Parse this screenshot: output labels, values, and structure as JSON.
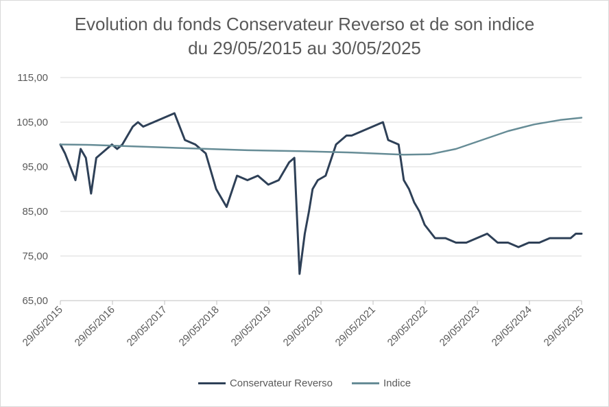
{
  "chart_data": {
    "type": "line",
    "title_line1": "Evolution du fonds Conservateur Reverso et de son indice",
    "title_line2": "du 29/05/2015 au 30/05/2025",
    "xlabel": "",
    "ylabel": "",
    "ylim": [
      65,
      115
    ],
    "y_ticks": [
      65,
      75,
      85,
      95,
      105,
      115
    ],
    "y_tick_labels": [
      "65,00",
      "75,00",
      "85,00",
      "95,00",
      "105,00",
      "115,00"
    ],
    "x_tick_labels": [
      "29/05/2015",
      "29/05/2016",
      "29/05/2017",
      "29/05/2018",
      "29/05/2019",
      "29/05/2020",
      "29/05/2021",
      "29/05/2022",
      "29/05/2023",
      "29/05/2024",
      "29/05/2025"
    ],
    "grid": "horizontal",
    "legend_position": "bottom",
    "series": [
      {
        "name": "Conservateur Reverso",
        "color": "#2e4057",
        "x": [
          2015.41,
          2015.5,
          2015.6,
          2015.7,
          2015.8,
          2015.9,
          2016.0,
          2016.1,
          2016.2,
          2016.3,
          2016.4,
          2016.5,
          2016.6,
          2016.7,
          2016.8,
          2016.9,
          2017.0,
          2017.2,
          2017.4,
          2017.6,
          2017.8,
          2018.0,
          2018.2,
          2018.4,
          2018.6,
          2018.8,
          2019.0,
          2019.2,
          2019.4,
          2019.6,
          2019.8,
          2019.9,
          2020.0,
          2020.1,
          2020.18,
          2020.25,
          2020.35,
          2020.5,
          2020.7,
          2020.9,
          2021.0,
          2021.2,
          2021.4,
          2021.6,
          2021.7,
          2021.9,
          2022.0,
          2022.1,
          2022.2,
          2022.3,
          2022.4,
          2022.6,
          2022.8,
          2023.0,
          2023.2,
          2023.4,
          2023.6,
          2023.8,
          2024.0,
          2024.2,
          2024.4,
          2024.6,
          2024.8,
          2025.0,
          2025.2,
          2025.3,
          2025.41
        ],
        "values": [
          100,
          98,
          95,
          92,
          99,
          97,
          89,
          97,
          98,
          99,
          100,
          99,
          100,
          102,
          104,
          105,
          104,
          105,
          106,
          107,
          101,
          100,
          98,
          90,
          86,
          93,
          92,
          93,
          91,
          92,
          96,
          97,
          71,
          80,
          85,
          90,
          92,
          93,
          100,
          102,
          102,
          103,
          104,
          105,
          101,
          100,
          92,
          90,
          87,
          85,
          82,
          79,
          79,
          78,
          78,
          79,
          80,
          78,
          78,
          77,
          78,
          78,
          79,
          79,
          79,
          80,
          80
        ]
      },
      {
        "name": "Indice",
        "color": "#668c96",
        "x": [
          2015.41,
          2016.0,
          2017.0,
          2018.0,
          2019.0,
          2020.0,
          2021.0,
          2022.0,
          2022.5,
          2023.0,
          2023.5,
          2024.0,
          2024.5,
          2025.0,
          2025.41
        ],
        "values": [
          100,
          99.9,
          99.5,
          99.1,
          98.7,
          98.5,
          98.2,
          97.7,
          97.8,
          99.0,
          101.0,
          103.0,
          104.5,
          105.5,
          106
        ]
      }
    ]
  }
}
